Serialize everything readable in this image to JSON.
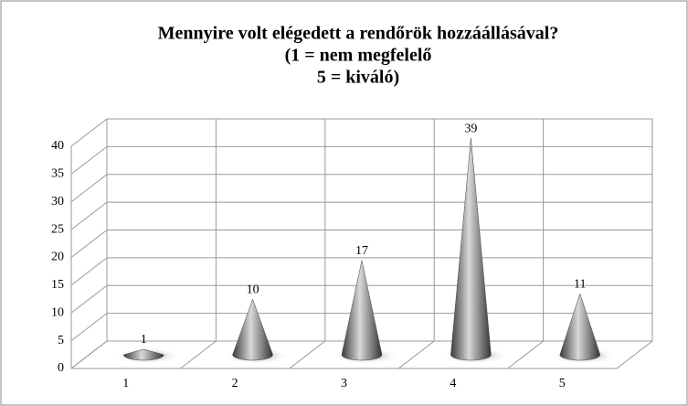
{
  "chart_data": {
    "type": "cone",
    "title": [
      "Mennyire volt elégedett a rendőrök hozzáállásával?",
      "(1 = nem megfelelő",
      "5 = kiváló)"
    ],
    "categories": [
      "1",
      "2",
      "3",
      "4",
      "5"
    ],
    "values": [
      1,
      10,
      17,
      39,
      11
    ],
    "color": "#888888",
    "ylim": [
      0,
      40
    ],
    "yticks": [
      0,
      5,
      10,
      15,
      20,
      25,
      30,
      35,
      40
    ],
    "grid": true
  }
}
